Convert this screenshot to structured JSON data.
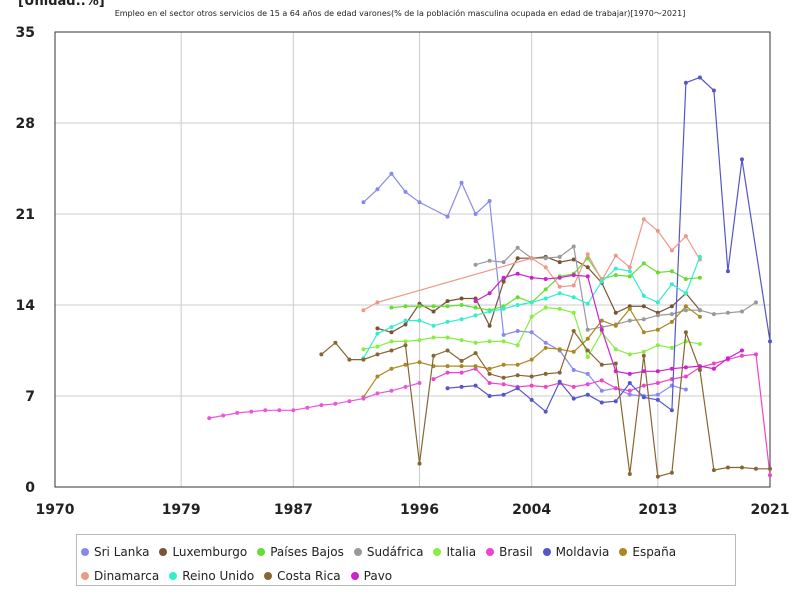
{
  "unit_label": "[Unidad:.%]",
  "chart_data": {
    "type": "line",
    "title": "Empleo en el sector otros servicios de 15 a 64 años de edad varones(% de la población masculina ocupada en edad de trabajar)[1970～2021]",
    "xlim": [
      1970,
      2021
    ],
    "ylim": [
      0,
      35
    ],
    "x_ticks": [
      "1970",
      "1979",
      "1987",
      "1996",
      "2004",
      "2013",
      "2021"
    ],
    "x_tick_values": [
      1970,
      1979,
      1987,
      1996,
      2004,
      2013,
      2021
    ],
    "y_ticks": [
      "0",
      "7",
      "14",
      "21",
      "28",
      "35"
    ],
    "y_tick_values": [
      0,
      7,
      14,
      21,
      28,
      35
    ],
    "grid": true,
    "legend_position": "bottom",
    "series": [
      {
        "name": "Sri Lanka",
        "color": "#8888ee",
        "x": [
          1992,
          1993,
          1994,
          1995,
          1996,
          1998,
          1999,
          2000,
          2001,
          2002,
          2003,
          2004,
          2005,
          2006,
          2007,
          2008,
          2009,
          2010,
          2011,
          2012,
          2013,
          2014,
          2015
        ],
        "y": [
          21.9,
          22.9,
          24.1,
          22.7,
          21.9,
          20.8,
          23.4,
          21.0,
          22.0,
          11.7,
          12.0,
          11.9,
          11.1,
          10.5,
          9.0,
          8.7,
          7.4,
          7.6,
          7.1,
          7.0,
          7.1,
          7.8,
          7.5
        ]
      },
      {
        "name": "Luxemburgo",
        "color": "#775533",
        "x": [
          1993,
          1994,
          1995,
          1996,
          1997,
          1998,
          1999,
          2000,
          2001,
          2002,
          2003,
          2004,
          2005,
          2006,
          2007,
          2008,
          2009,
          2010,
          2011,
          2012,
          2013,
          2014,
          2015,
          2016
        ],
        "y": [
          12.2,
          11.9,
          12.5,
          14.1,
          13.5,
          14.3,
          14.5,
          14.5,
          12.4,
          15.8,
          17.6,
          17.6,
          17.7,
          17.3,
          17.5,
          16.9,
          15.7,
          13.4,
          13.9,
          13.9,
          13.4,
          13.9,
          14.9,
          13.6
        ]
      },
      {
        "name": "Países Bajos",
        "color": "#66dd33",
        "x": [
          1994,
          1995,
          1996,
          1997,
          1998,
          1999,
          2000,
          2001,
          2002,
          2003,
          2004,
          2005,
          2006,
          2007,
          2008,
          2009,
          2010,
          2011,
          2012,
          2013,
          2014,
          2015,
          2016
        ],
        "y": [
          13.8,
          13.9,
          13.9,
          13.9,
          13.9,
          14.0,
          13.8,
          13.6,
          13.9,
          14.6,
          14.2,
          15.2,
          16.2,
          16.4,
          17.6,
          16.0,
          16.3,
          16.2,
          17.2,
          16.5,
          16.6,
          16.0,
          16.1
        ]
      },
      {
        "name": "Sudáfrica",
        "color": "#999999",
        "x": [
          2000,
          2001,
          2002,
          2003,
          2004,
          2005,
          2006,
          2007,
          2008,
          2009,
          2010,
          2011,
          2012,
          2013,
          2014,
          2015,
          2016,
          2017,
          2018,
          2019,
          2020
        ],
        "y": [
          17.1,
          17.4,
          17.3,
          18.4,
          17.6,
          17.6,
          17.7,
          18.5,
          12.1,
          12.3,
          12.5,
          12.8,
          12.9,
          13.2,
          13.3,
          13.6,
          13.6,
          13.3,
          13.4,
          13.5,
          14.2
        ]
      },
      {
        "name": "Italia",
        "color": "#88ee44",
        "x": [
          1992,
          1993,
          1994,
          1995,
          1996,
          1997,
          1998,
          1999,
          2000,
          2001,
          2002,
          2003,
          2004,
          2005,
          2006,
          2007,
          2008,
          2009,
          2010,
          2011,
          2012,
          2013,
          2014,
          2015,
          2016
        ],
        "y": [
          10.6,
          10.8,
          11.2,
          11.2,
          11.3,
          11.5,
          11.5,
          11.3,
          11.1,
          11.2,
          11.2,
          10.9,
          13.1,
          13.8,
          13.7,
          13.4,
          10.0,
          11.9,
          10.6,
          10.2,
          10.4,
          10.9,
          10.7,
          11.2,
          11.0
        ]
      },
      {
        "name": "Brasil",
        "color": "#ee44cc",
        "x": [
          1997,
          1998,
          1999,
          2000,
          2001,
          2002,
          2003,
          2004,
          2005,
          2006,
          2007,
          2008,
          2009,
          2010,
          2011,
          2012,
          2013,
          2014,
          2015,
          2016,
          2017,
          2018,
          2019,
          2020,
          2021
        ],
        "y": [
          8.3,
          8.8,
          8.8,
          9.1,
          8.0,
          7.9,
          7.7,
          7.8,
          7.7,
          8.0,
          7.7,
          7.9,
          8.2,
          7.6,
          7.4,
          7.8,
          8.0,
          8.3,
          8.5,
          9.2,
          9.5,
          9.8,
          10.1,
          10.2,
          0.9
        ]
      },
      {
        "name": "Moldavia",
        "color": "#5555cc",
        "x": [
          1998,
          1999,
          2000,
          2001,
          2002,
          2003,
          2004,
          2005,
          2006,
          2007,
          2008,
          2009,
          2010,
          2011,
          2012,
          2013,
          2014,
          2015,
          2016,
          2017,
          2018,
          2019,
          2021
        ],
        "y": [
          7.6,
          7.7,
          7.8,
          7.0,
          7.1,
          7.6,
          6.7,
          5.8,
          8.1,
          6.8,
          7.1,
          6.5,
          6.6,
          8.0,
          6.9,
          6.7,
          5.9,
          31.1,
          31.5,
          30.5,
          16.6,
          25.2,
          11.2
        ]
      },
      {
        "name": "España",
        "color": "#aa8822",
        "x": [
          1992,
          1993,
          1994,
          1995,
          1996,
          1997,
          1998,
          1999,
          2000,
          2001,
          2002,
          2003,
          2004,
          2005,
          2006,
          2007,
          2008,
          2009,
          2010,
          2011,
          2012,
          2013,
          2014,
          2015,
          2016
        ],
        "y": [
          6.9,
          8.5,
          9.1,
          9.4,
          9.6,
          9.3,
          9.3,
          9.3,
          9.3,
          9.1,
          9.4,
          9.4,
          9.8,
          10.7,
          10.6,
          10.4,
          11.4,
          12.8,
          12.4,
          13.7,
          11.9,
          12.1,
          12.7,
          13.9,
          13.1
        ]
      },
      {
        "name": "Dinamarca",
        "color": "#ee9988",
        "x": [
          1992,
          1993,
          2004,
          2005,
          2006,
          2007,
          2008,
          2009,
          2010,
          2011,
          2012,
          2013,
          2014,
          2015,
          2016
        ],
        "y": [
          13.6,
          14.2,
          17.6,
          16.9,
          15.4,
          15.5,
          17.9,
          15.9,
          17.8,
          16.9,
          20.6,
          19.7,
          18.2,
          19.3,
          17.5
        ]
      },
      {
        "name": "Reino Unido",
        "color": "#33eecc",
        "x": [
          1992,
          1993,
          1994,
          1995,
          1996,
          1997,
          1998,
          1999,
          2000,
          2001,
          2002,
          2003,
          2004,
          2005,
          2006,
          2007,
          2008,
          2009,
          2010,
          2011,
          2012,
          2013,
          2014,
          2015,
          2016
        ],
        "y": [
          9.9,
          11.8,
          12.3,
          12.8,
          12.8,
          12.4,
          12.7,
          12.9,
          13.2,
          13.5,
          13.7,
          14.0,
          14.2,
          14.5,
          14.9,
          14.6,
          14.1,
          15.8,
          16.8,
          16.6,
          14.7,
          14.2,
          15.6,
          14.9,
          17.7
        ]
      },
      {
        "name": "Costa Rica",
        "color": "#886633",
        "x": [
          1989,
          1990,
          1991,
          1992,
          1993,
          1994,
          1995,
          1996,
          1997,
          1998,
          1999,
          2000,
          2001,
          2002,
          2003,
          2004,
          2005,
          2006,
          2007,
          2008,
          2009,
          2010,
          2011,
          2012,
          2013,
          2014,
          2015,
          2016,
          2017,
          2018,
          2019,
          2020,
          2021
        ],
        "y": [
          10.2,
          11.1,
          9.8,
          9.8,
          10.2,
          10.5,
          10.9,
          1.8,
          10.1,
          10.5,
          9.7,
          10.3,
          8.7,
          8.4,
          8.6,
          8.5,
          8.7,
          8.8,
          12.0,
          10.5,
          9.4,
          9.5,
          1.0,
          10.1,
          0.8,
          1.1,
          11.9,
          9.0,
          1.3,
          1.5,
          1.5,
          1.4,
          1.4
        ]
      },
      {
        "name": "Pavo",
        "color": "#cc22cc",
        "x": [
          2000,
          2001,
          2002,
          2003,
          2004,
          2005,
          2006,
          2007,
          2008,
          2009,
          2010,
          2011,
          2012,
          2013,
          2014,
          2015,
          2016,
          2017,
          2018,
          2019
        ],
        "y": [
          14.3,
          14.9,
          16.1,
          16.4,
          16.1,
          16.0,
          16.1,
          16.3,
          16.2,
          12.1,
          8.9,
          8.7,
          8.9,
          8.9,
          9.1,
          9.2,
          9.3,
          9.1,
          9.9,
          10.5
        ]
      },
      {
        "name": "",
        "color": "#ee55dd",
        "x": [
          1981,
          1982,
          1983,
          1984,
          1985,
          1986,
          1987,
          1988,
          1989,
          1990,
          1991,
          1992,
          1993,
          1994,
          1995,
          1996
        ],
        "y": [
          5.3,
          5.5,
          5.7,
          5.8,
          5.9,
          5.9,
          5.9,
          6.1,
          6.3,
          6.4,
          6.6,
          6.8,
          7.2,
          7.4,
          7.7,
          8.0
        ]
      }
    ]
  }
}
